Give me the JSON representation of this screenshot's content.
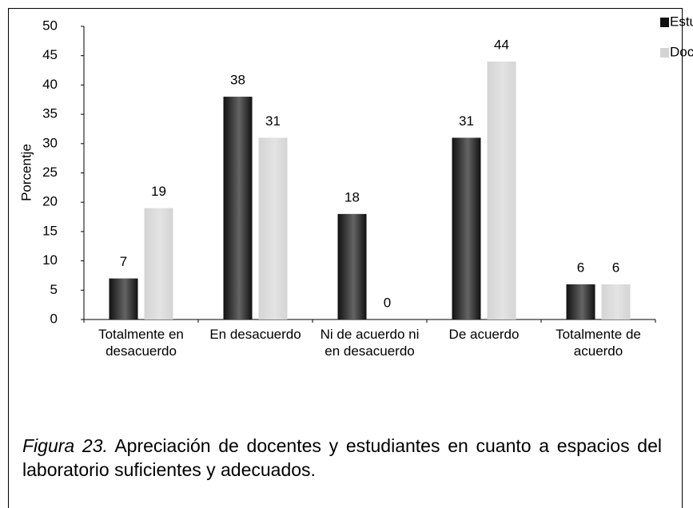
{
  "chart_data": {
    "type": "bar",
    "y_label": "Porcentje",
    "categories": [
      "Totalmente en desacuerdo",
      "En desacuerdo",
      "Ni de acuerdo ni en desacuerdo",
      "De acuerdo",
      "Totalmente de acuerdo"
    ],
    "series": [
      {
        "name": "Estudiantes",
        "color": "#111111",
        "values": [
          7,
          38,
          18,
          31,
          6
        ]
      },
      {
        "name": "Docentes",
        "color": "#d4d4d4",
        "values": [
          19,
          31,
          0,
          44,
          6
        ]
      }
    ],
    "ylim": [
      0,
      50
    ],
    "yticks": [
      0,
      5,
      10,
      15,
      20,
      25,
      30,
      35,
      40,
      45,
      50
    ],
    "legend": "top-right",
    "caption_label": "Figura 23.",
    "caption": "Apreciación de docentes y estudiantes en cuanto a espacios del laboratorio suficientes y adecuados."
  }
}
